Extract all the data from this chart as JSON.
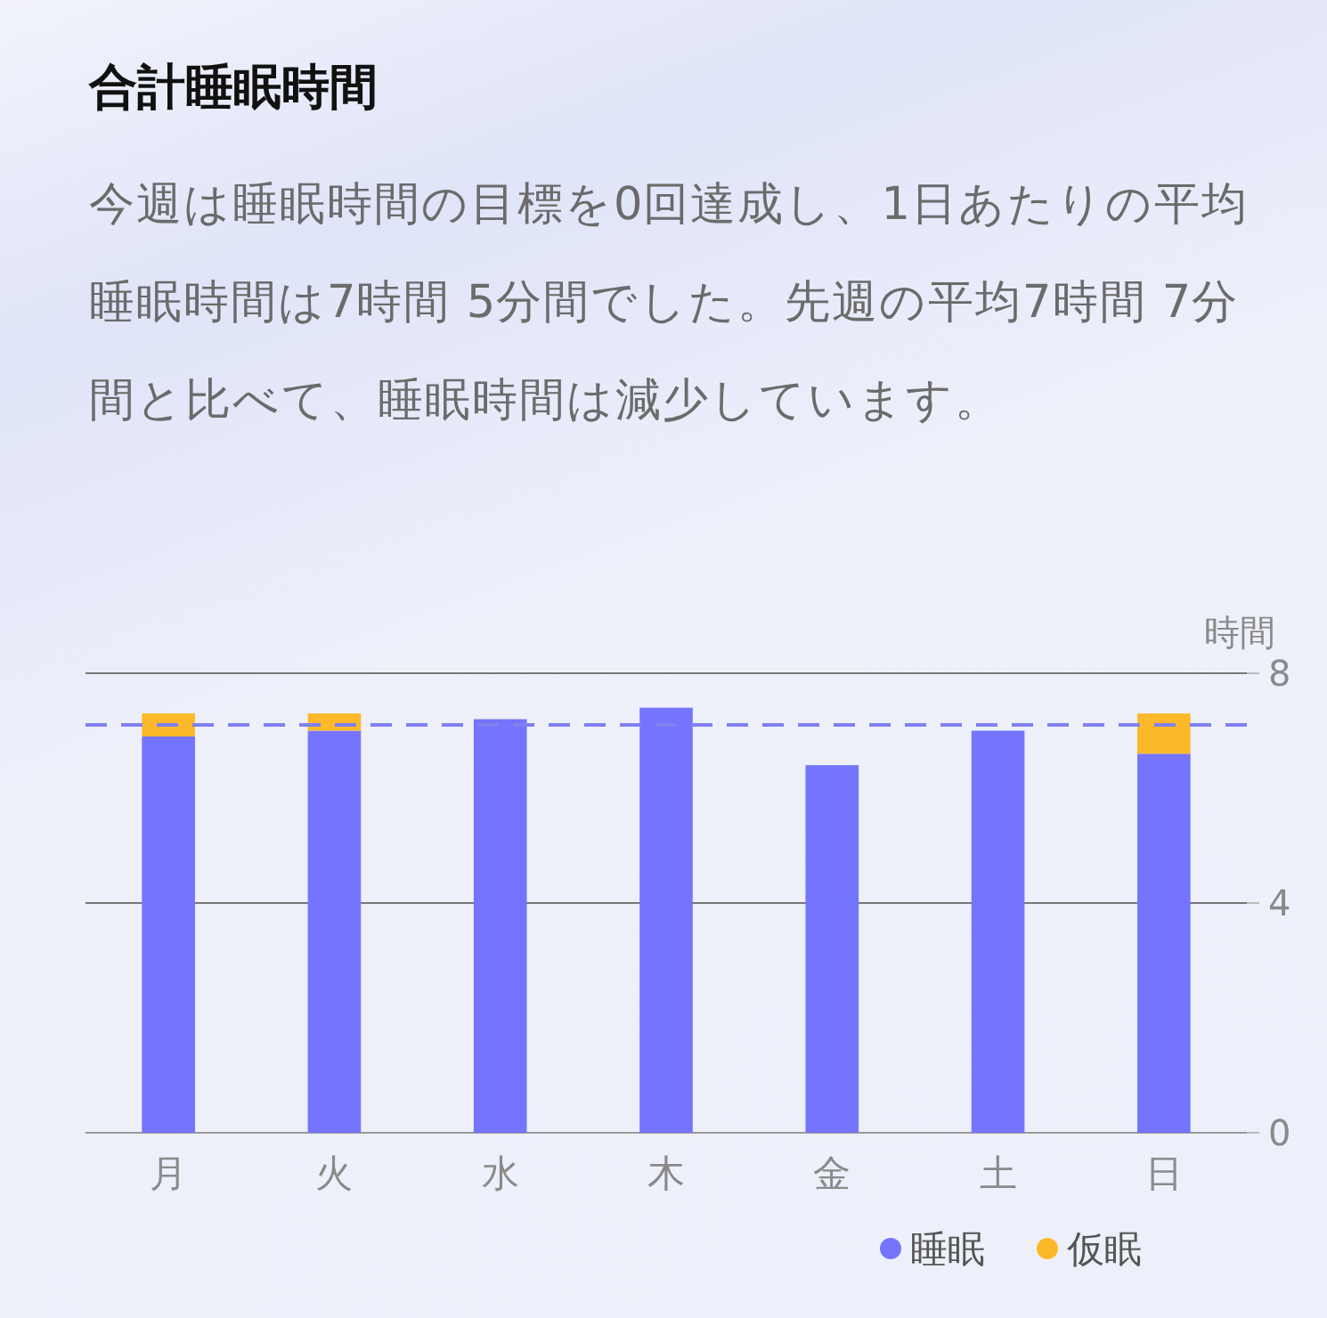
{
  "chart_data": {
    "type": "bar",
    "title": "合計睡眠時間",
    "subtitle": "今週は睡眠時間の目標を0回達成し、1日あたりの平均睡眠時間は7時間 5分間でした。先週の平均7時間 7分間と比べて、睡眠時間は減少しています。",
    "ylabel": "時間",
    "categories": [
      "月",
      "火",
      "水",
      "木",
      "金",
      "土",
      "日"
    ],
    "stacked": true,
    "series": [
      {
        "name": "睡眠",
        "color": "#7474ff",
        "values": [
          6.9,
          7.0,
          7.2,
          7.4,
          6.4,
          7.0,
          6.6
        ]
      },
      {
        "name": "仮眠",
        "color": "#fbb929",
        "values": [
          0.4,
          0.3,
          0,
          0,
          0,
          0,
          0.7
        ]
      }
    ],
    "ylim": [
      0,
      8
    ],
    "yticks": [
      0,
      4,
      8
    ],
    "grid": "y",
    "legend": "bottom right",
    "ref_lines": [
      {
        "axis": "y",
        "value": 7.1,
        "color": "#8080f0",
        "line_style": "dashed"
      }
    ]
  }
}
